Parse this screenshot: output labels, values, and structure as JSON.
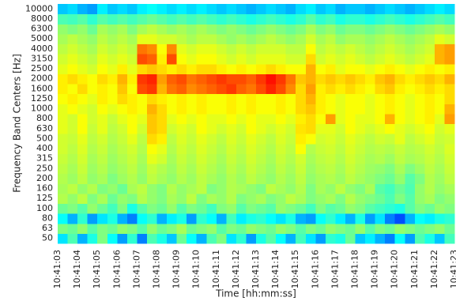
{
  "chart_data": {
    "type": "heatmap",
    "colormap": "jet",
    "vlim": [
      0,
      100
    ],
    "xlabel": "Time [hh:mm:ss]",
    "ylabel": "Frequency Band Centers [Hz]",
    "xticks": [
      "10:41:03",
      "10:41:04",
      "10:41:05",
      "10:41:06",
      "10:41:07",
      "10:41:08",
      "10:41:09",
      "10:41:10",
      "10:41:11",
      "10:41:12",
      "10:41:13",
      "10:41:14",
      "10:41:15",
      "10:41:16",
      "10:41:17",
      "10:41:18",
      "10:41:19",
      "10:41:20",
      "10:41:21",
      "10:41:22",
      "10:41:23"
    ],
    "categories": [
      50,
      63,
      80,
      100,
      125,
      160,
      200,
      250,
      315,
      400,
      500,
      630,
      800,
      1000,
      1250,
      1600,
      2000,
      2500,
      3150,
      4000,
      5000,
      6300,
      8000,
      10000
    ],
    "z": [
      [
        35,
        45,
        30,
        40,
        50,
        38,
        28,
        42,
        25,
        45,
        40,
        32,
        48,
        38,
        30,
        45,
        50,
        35,
        42,
        28,
        40,
        46,
        38,
        30,
        44,
        35,
        28,
        42,
        40,
        48,
        32,
        36,
        30,
        25,
        38,
        28,
        45,
        40,
        32,
        44
      ],
      [
        50,
        48,
        52,
        46,
        50,
        48,
        52,
        50,
        46,
        52,
        48,
        50,
        54,
        48,
        50,
        52,
        46,
        50,
        48,
        52,
        50,
        48,
        52,
        50,
        46,
        50,
        48,
        52,
        50,
        48,
        52,
        46,
        50,
        48,
        52,
        50,
        48,
        50,
        52,
        48
      ],
      [
        38,
        30,
        42,
        28,
        35,
        40,
        30,
        25,
        38,
        42,
        30,
        36,
        40,
        28,
        42,
        38,
        30,
        44,
        36,
        40,
        42,
        38,
        35,
        40,
        30,
        28,
        38,
        42,
        36,
        30,
        40,
        28,
        35,
        25,
        20,
        30,
        38,
        36,
        40,
        42
      ],
      [
        48,
        50,
        46,
        52,
        48,
        44,
        50,
        40,
        46,
        50,
        48,
        52,
        46,
        50,
        48,
        44,
        50,
        52,
        46,
        50,
        48,
        46,
        52,
        50,
        48,
        44,
        50,
        46,
        48,
        52,
        50,
        46,
        44,
        42,
        40,
        46,
        50,
        48,
        52,
        50
      ],
      [
        55,
        52,
        56,
        50,
        54,
        48,
        52,
        50,
        55,
        52,
        50,
        54,
        52,
        56,
        50,
        54,
        52,
        55,
        50,
        52,
        54,
        50,
        52,
        56,
        54,
        50,
        52,
        54,
        50,
        55,
        52,
        50,
        48,
        45,
        50,
        46,
        52,
        54,
        50,
        52
      ],
      [
        54,
        56,
        52,
        55,
        50,
        52,
        48,
        54,
        56,
        52,
        50,
        55,
        52,
        54,
        56,
        50,
        52,
        55,
        54,
        52,
        50,
        56,
        54,
        52,
        55,
        50,
        54,
        52,
        56,
        52,
        50,
        54,
        46,
        44,
        48,
        45,
        52,
        55,
        52,
        54
      ],
      [
        55,
        53,
        56,
        52,
        54,
        50,
        53,
        55,
        52,
        56,
        54,
        52,
        55,
        53,
        56,
        54,
        52,
        55,
        53,
        56,
        54,
        52,
        55,
        53,
        56,
        52,
        54,
        55,
        53,
        56,
        54,
        52,
        50,
        48,
        52,
        46,
        50,
        55,
        53,
        56
      ],
      [
        56,
        54,
        57,
        53,
        55,
        52,
        54,
        56,
        53,
        57,
        55,
        53,
        56,
        54,
        57,
        55,
        53,
        56,
        54,
        57,
        55,
        53,
        56,
        54,
        57,
        53,
        55,
        56,
        54,
        57,
        55,
        53,
        52,
        50,
        54,
        50,
        53,
        56,
        54,
        57
      ],
      [
        57,
        55,
        58,
        54,
        56,
        53,
        55,
        57,
        54,
        60,
        58,
        54,
        57,
        55,
        58,
        56,
        54,
        57,
        55,
        58,
        56,
        54,
        57,
        55,
        58,
        54,
        56,
        57,
        55,
        58,
        56,
        54,
        55,
        53,
        56,
        54,
        55,
        57,
        55,
        58
      ],
      [
        58,
        56,
        59,
        55,
        57,
        54,
        56,
        58,
        55,
        62,
        60,
        55,
        58,
        56,
        59,
        57,
        55,
        58,
        56,
        59,
        57,
        55,
        58,
        56,
        62,
        55,
        57,
        58,
        56,
        59,
        57,
        55,
        56,
        55,
        57,
        55,
        56,
        58,
        56,
        59
      ],
      [
        58,
        57,
        60,
        56,
        58,
        55,
        57,
        60,
        56,
        66,
        64,
        56,
        59,
        57,
        60,
        58,
        56,
        59,
        57,
        60,
        58,
        56,
        59,
        57,
        64,
        62,
        58,
        59,
        57,
        60,
        58,
        56,
        58,
        57,
        60,
        56,
        58,
        60,
        57,
        58
      ],
      [
        60,
        58,
        62,
        57,
        60,
        56,
        58,
        62,
        58,
        68,
        66,
        58,
        60,
        58,
        62,
        60,
        58,
        60,
        58,
        62,
        60,
        58,
        60,
        58,
        65,
        66,
        60,
        60,
        58,
        62,
        60,
        58,
        60,
        62,
        60,
        58,
        60,
        62,
        58,
        60
      ],
      [
        60,
        58,
        62,
        58,
        60,
        57,
        60,
        62,
        60,
        68,
        66,
        60,
        62,
        60,
        62,
        60,
        60,
        62,
        60,
        62,
        60,
        60,
        62,
        60,
        64,
        66,
        62,
        72,
        60,
        62,
        60,
        60,
        62,
        70,
        62,
        60,
        62,
        64,
        60,
        72
      ],
      [
        60,
        62,
        60,
        58,
        62,
        60,
        62,
        64,
        62,
        70,
        66,
        62,
        64,
        62,
        64,
        62,
        62,
        64,
        62,
        64,
        62,
        62,
        64,
        62,
        66,
        68,
        64,
        62,
        60,
        62,
        62,
        60,
        62,
        64,
        62,
        60,
        62,
        64,
        62,
        70
      ],
      [
        62,
        64,
        62,
        60,
        64,
        62,
        66,
        64,
        62,
        66,
        64,
        62,
        64,
        62,
        64,
        62,
        62,
        64,
        62,
        64,
        62,
        62,
        64,
        62,
        66,
        70,
        64,
        62,
        60,
        62,
        62,
        60,
        62,
        64,
        62,
        60,
        62,
        64,
        62,
        66
      ],
      [
        64,
        62,
        66,
        62,
        64,
        62,
        68,
        62,
        80,
        82,
        70,
        76,
        78,
        74,
        76,
        78,
        80,
        82,
        78,
        76,
        80,
        84,
        80,
        74,
        66,
        72,
        64,
        66,
        64,
        66,
        64,
        62,
        66,
        68,
        64,
        62,
        64,
        66,
        64,
        66
      ],
      [
        64,
        66,
        64,
        62,
        66,
        64,
        70,
        64,
        82,
        84,
        72,
        78,
        80,
        76,
        78,
        80,
        82,
        80,
        80,
        78,
        82,
        86,
        82,
        76,
        68,
        70,
        66,
        68,
        66,
        68,
        66,
        64,
        68,
        70,
        66,
        64,
        66,
        68,
        66,
        70
      ],
      [
        60,
        62,
        60,
        58,
        62,
        60,
        64,
        60,
        66,
        68,
        66,
        64,
        66,
        64,
        66,
        66,
        64,
        62,
        64,
        62,
        64,
        66,
        64,
        62,
        62,
        70,
        62,
        64,
        60,
        62,
        62,
        60,
        62,
        64,
        62,
        60,
        62,
        64,
        62,
        64
      ],
      [
        58,
        60,
        58,
        56,
        60,
        58,
        60,
        58,
        80,
        78,
        64,
        80,
        62,
        60,
        62,
        62,
        60,
        58,
        60,
        58,
        60,
        60,
        60,
        58,
        58,
        66,
        58,
        60,
        58,
        60,
        58,
        56,
        58,
        60,
        58,
        56,
        58,
        60,
        70,
        72
      ],
      [
        56,
        58,
        56,
        54,
        58,
        56,
        58,
        56,
        76,
        74,
        62,
        74,
        60,
        58,
        60,
        60,
        58,
        56,
        58,
        56,
        58,
        58,
        58,
        56,
        56,
        62,
        56,
        58,
        56,
        58,
        56,
        54,
        56,
        58,
        56,
        54,
        56,
        58,
        70,
        72
      ],
      [
        54,
        56,
        54,
        52,
        56,
        54,
        56,
        54,
        60,
        60,
        58,
        58,
        56,
        54,
        56,
        56,
        54,
        52,
        54,
        52,
        54,
        56,
        54,
        52,
        54,
        58,
        54,
        56,
        52,
        54,
        54,
        52,
        54,
        56,
        54,
        52,
        54,
        56,
        60,
        58
      ],
      [
        52,
        50,
        52,
        48,
        54,
        52,
        54,
        50,
        54,
        56,
        54,
        52,
        54,
        52,
        54,
        52,
        50,
        52,
        50,
        48,
        50,
        52,
        50,
        48,
        50,
        54,
        50,
        52,
        48,
        50,
        50,
        48,
        50,
        52,
        50,
        48,
        50,
        52,
        54,
        52
      ],
      [
        45,
        44,
        46,
        42,
        46,
        44,
        46,
        44,
        46,
        48,
        46,
        44,
        46,
        44,
        46,
        44,
        42,
        44,
        42,
        40,
        42,
        44,
        42,
        40,
        42,
        46,
        42,
        44,
        40,
        42,
        42,
        40,
        42,
        44,
        42,
        40,
        42,
        44,
        46,
        44
      ],
      [
        32,
        34,
        30,
        28,
        36,
        32,
        34,
        32,
        36,
        38,
        36,
        34,
        36,
        34,
        36,
        34,
        32,
        34,
        32,
        30,
        32,
        34,
        32,
        30,
        34,
        36,
        32,
        34,
        30,
        32,
        32,
        30,
        32,
        34,
        32,
        30,
        32,
        34,
        36,
        34
      ]
    ]
  }
}
